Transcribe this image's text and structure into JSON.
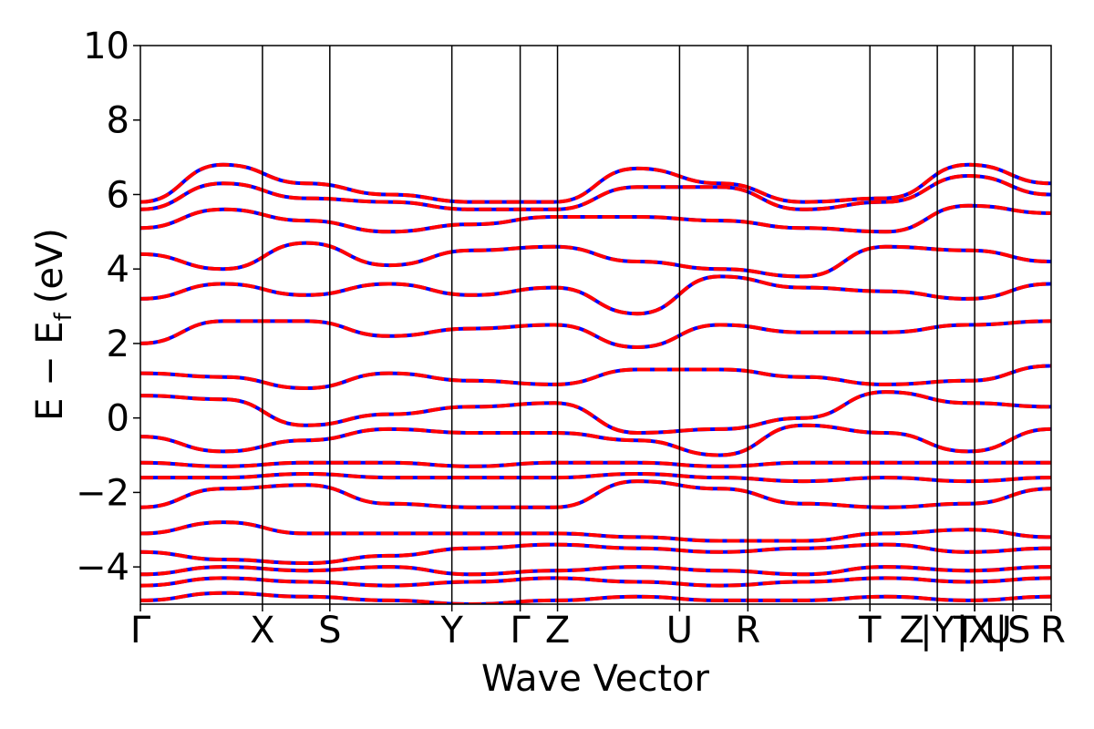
{
  "chart_data": {
    "type": "line",
    "title": "",
    "xlabel": "Wave Vector",
    "ylabel": "E − E",
    "ylabel_sub": "f",
    "ylabel_unit": "(eV)",
    "ylim": [
      -5,
      10
    ],
    "yticks": [
      -4,
      -2,
      0,
      2,
      4,
      6,
      8,
      10
    ],
    "ytick_labels": [
      "−4",
      "−2",
      "0",
      "2",
      "4",
      "6",
      "8",
      "10"
    ],
    "kpath": [
      {
        "label": "Γ",
        "x": 0.0
      },
      {
        "label": "X",
        "x": 0.134
      },
      {
        "label": "S",
        "x": 0.208
      },
      {
        "label": "Y",
        "x": 0.342
      },
      {
        "label": "Γ",
        "x": 0.417
      },
      {
        "label": "Z",
        "x": 0.458
      },
      {
        "label": "U",
        "x": 0.592
      },
      {
        "label": "R",
        "x": 0.667
      },
      {
        "label": "T",
        "x": 0.801
      },
      {
        "label": "Z",
        "x": 0.875
      },
      {
        "label": "|Y",
        "x": 0.875
      },
      {
        "label": "T",
        "x": 0.875
      },
      {
        "label": "|X",
        "x": 0.916
      },
      {
        "label": "U",
        "x": 0.916
      },
      {
        "label": "|S",
        "x": 0.958
      },
      {
        "label": "R",
        "x": 1.0
      }
    ],
    "kpath_lines": [
      0.134,
      0.208,
      0.342,
      0.417,
      0.458,
      0.592,
      0.667,
      0.801,
      0.875,
      0.916,
      0.958
    ],
    "series": [
      {
        "color": "#0000ff",
        "style": "solid"
      },
      {
        "color": "#ff0000",
        "style": "dashed"
      }
    ],
    "bands_approx": [
      [
        -4.9,
        -4.7,
        -4.8,
        -4.9,
        -5.0,
        -4.9,
        -4.8,
        -4.9,
        -4.9,
        -4.8,
        -4.9,
        -4.8
      ],
      [
        -4.5,
        -4.3,
        -4.4,
        -4.5,
        -4.4,
        -4.3,
        -4.4,
        -4.5,
        -4.4,
        -4.3,
        -4.4,
        -4.3
      ],
      [
        -4.2,
        -4.0,
        -4.1,
        -4.0,
        -4.2,
        -4.1,
        -4.0,
        -4.1,
        -4.2,
        -4.0,
        -4.1,
        -4.0
      ],
      [
        -3.6,
        -3.8,
        -3.9,
        -3.7,
        -3.5,
        -3.4,
        -3.5,
        -3.6,
        -3.5,
        -3.4,
        -3.6,
        -3.5
      ],
      [
        -3.1,
        -2.8,
        -3.1,
        -3.1,
        -3.1,
        -3.1,
        -3.2,
        -3.3,
        -3.3,
        -3.1,
        -3.0,
        -3.2
      ],
      [
        -2.4,
        -1.9,
        -1.8,
        -2.3,
        -2.4,
        -2.4,
        -1.7,
        -1.9,
        -2.3,
        -2.4,
        -2.3,
        -1.9
      ],
      [
        -1.6,
        -1.6,
        -1.5,
        -1.6,
        -1.6,
        -1.6,
        -1.5,
        -1.6,
        -1.7,
        -1.6,
        -1.7,
        -1.6
      ],
      [
        -1.2,
        -1.3,
        -1.2,
        -1.2,
        -1.3,
        -1.2,
        -1.2,
        -1.3,
        -1.2,
        -1.2,
        -1.2,
        -1.2
      ],
      [
        -0.5,
        -0.9,
        -0.6,
        -0.3,
        -0.4,
        -0.4,
        -0.6,
        -1.0,
        -0.2,
        -0.4,
        -0.9,
        -0.3
      ],
      [
        0.6,
        0.5,
        -0.2,
        0.1,
        0.3,
        0.4,
        -0.4,
        -0.3,
        0.0,
        0.7,
        0.4,
        0.3
      ],
      [
        1.2,
        1.1,
        0.8,
        1.2,
        1.0,
        0.9,
        1.3,
        1.3,
        1.1,
        0.9,
        1.0,
        1.4
      ],
      [
        2.0,
        2.6,
        2.6,
        2.2,
        2.4,
        2.5,
        1.9,
        2.5,
        2.3,
        2.3,
        2.5,
        2.6
      ],
      [
        3.2,
        3.6,
        3.3,
        3.6,
        3.3,
        3.5,
        2.8,
        3.8,
        3.5,
        3.4,
        3.2,
        3.6
      ],
      [
        4.4,
        4.0,
        4.7,
        4.1,
        4.5,
        4.6,
        4.2,
        4.0,
        3.8,
        4.6,
        4.5,
        4.2
      ],
      [
        5.1,
        5.6,
        5.3,
        5.0,
        5.2,
        5.4,
        5.4,
        5.3,
        5.1,
        5.0,
        5.7,
        5.5
      ],
      [
        5.6,
        6.3,
        5.9,
        5.8,
        5.6,
        5.6,
        6.2,
        6.2,
        5.6,
        5.8,
        6.5,
        6.0
      ],
      [
        5.8,
        6.8,
        6.3,
        6.0,
        5.8,
        5.8,
        6.7,
        6.3,
        5.8,
        5.9,
        6.8,
        6.3
      ]
    ]
  }
}
